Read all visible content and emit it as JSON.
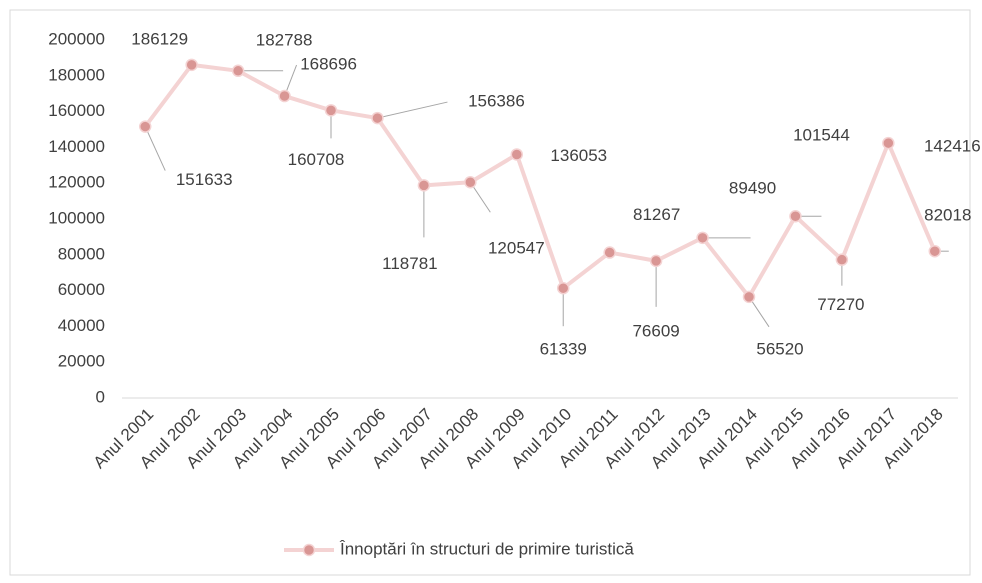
{
  "chart_data": {
    "type": "line",
    "categories": [
      "Anul 2001",
      "Anul 2002",
      "Anul 2003",
      "Anul 2004",
      "Anul 2005",
      "Anul 2006",
      "Anul 2007",
      "Anul 2008",
      "Anul 2009",
      "Anul 2010",
      "Anul 2011",
      "Anul 2012",
      "Anul 2013",
      "Anul 2014",
      "Anul 2015",
      "Anul 2016",
      "Anul 2017",
      "Anul 2018"
    ],
    "series": [
      {
        "name": "Înnoptări în structuri de primire turistică",
        "color": "#f4d3d3",
        "marker_color": "#d99694",
        "values": [
          151633,
          186129,
          182788,
          168696,
          160708,
          156386,
          118781,
          120547,
          136053,
          61339,
          81267,
          76609,
          89490,
          56520,
          101544,
          77270,
          142416,
          82018
        ]
      }
    ],
    "ylim": [
      0,
      200000
    ],
    "yticks": [
      0,
      20000,
      40000,
      60000,
      80000,
      100000,
      120000,
      140000,
      160000,
      180000,
      200000
    ],
    "grid": false,
    "legend": "bottom"
  }
}
